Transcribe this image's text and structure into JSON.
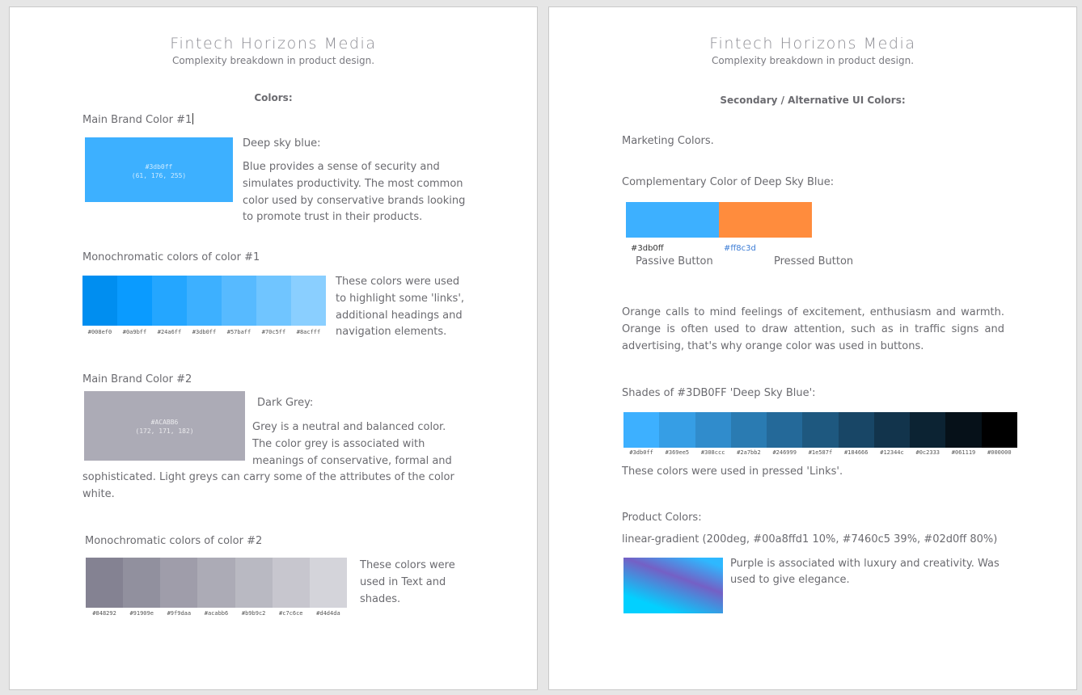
{
  "left_page": {
    "brand": "Fintech Horizons Media",
    "subtitle": "Complexity breakdown in product design.",
    "section_title": "Colors:",
    "brand1": {
      "label": "Main Brand Color #1",
      "swatch_hex": "#3db0ff",
      "swatch_rgb": "(61, 176, 255)",
      "color_name": "Deep sky blue:",
      "description": "Blue provides a sense of security and simulates productivity. The most common color used by conservative brands looking to promote trust in their products."
    },
    "mono1": {
      "label": "Monochromatic colors of color #1",
      "colors": [
        "#008ef0",
        "#0a9bff",
        "#24a6ff",
        "#3db0ff",
        "#57baff",
        "#70c5ff",
        "#8acfff"
      ],
      "hex_labels": [
        "#008ef0",
        "#0a9bff",
        "#24a6ff",
        "#3db0ff",
        "#57baff",
        "#70c5ff",
        "#8acfff"
      ],
      "description": "These colors were used to highlight some 'links', additional headings and navigation elements."
    },
    "brand2": {
      "label": "Main Brand Color #2",
      "swatch_hex": "#ACABB6",
      "swatch_rgb": "(172, 171, 182)",
      "color_name": "Dark Grey:",
      "description": "Grey is a neutral and balanced color. The color grey is associated with meanings of conservative, formal and sophisticated. Light greys can carry some of the attributes of the color white."
    },
    "mono2": {
      "label": "Monochromatic colors of color #2",
      "colors": [
        "#848292",
        "#91909e",
        "#9f9daa",
        "#acabb6",
        "#b9b9c2",
        "#c7c6ce",
        "#d4d4da"
      ],
      "hex_labels": [
        "#848292",
        "#91909e",
        "#9f9daa",
        "#acabb6",
        "#b9b9c2",
        "#c7c6ce",
        "#d4d4da"
      ],
      "description": "These colors were used in Text and shades."
    }
  },
  "right_page": {
    "brand": "Fintech Horizons Media",
    "subtitle": "Complexity breakdown in product design.",
    "section_title": "Secondary / Alternative UI Colors:",
    "marketing_label": "Marketing Colors.",
    "complementary": {
      "label": "Complementary Color of Deep Sky Blue:",
      "colors": [
        "#3db0ff",
        "#ff8c3d"
      ],
      "hex1": "#3db0ff",
      "hex2": "#ff8c3d",
      "caption1": "Passive Button",
      "caption2": "Pressed Button"
    },
    "orange_text": "Orange calls to mind feelings of excitement, enthusiasm and warmth. Orange is often used to draw attention, such as in traffic signs and advertising, that's why orange color was used in buttons.",
    "shades": {
      "label": "Shades of #3DB0FF 'Deep Sky Blue':",
      "colors": [
        "#3db0ff",
        "#369ee5",
        "#308ccc",
        "#2a7bb2",
        "#246999",
        "#1e587f",
        "#184666",
        "#12344c",
        "#0c2333",
        "#061119",
        "#000000"
      ],
      "hex_labels": [
        "#3db0ff",
        "#369ee5",
        "#308ccc",
        "#2a7bb2",
        "#246999",
        "#1e587f",
        "#184666",
        "#12344c",
        "#0c2333",
        "#061119",
        "#000000"
      ],
      "description": "These colors were used in pressed 'Links'."
    },
    "product": {
      "label": "Product Colors:",
      "gradient_text": "linear-gradient (200deg, #00a8ffd1 10%, #7460c5 39%, #02d0ff 80%)",
      "description": "Purple is associated with luxury and creativity. Was used to give elegance."
    }
  }
}
